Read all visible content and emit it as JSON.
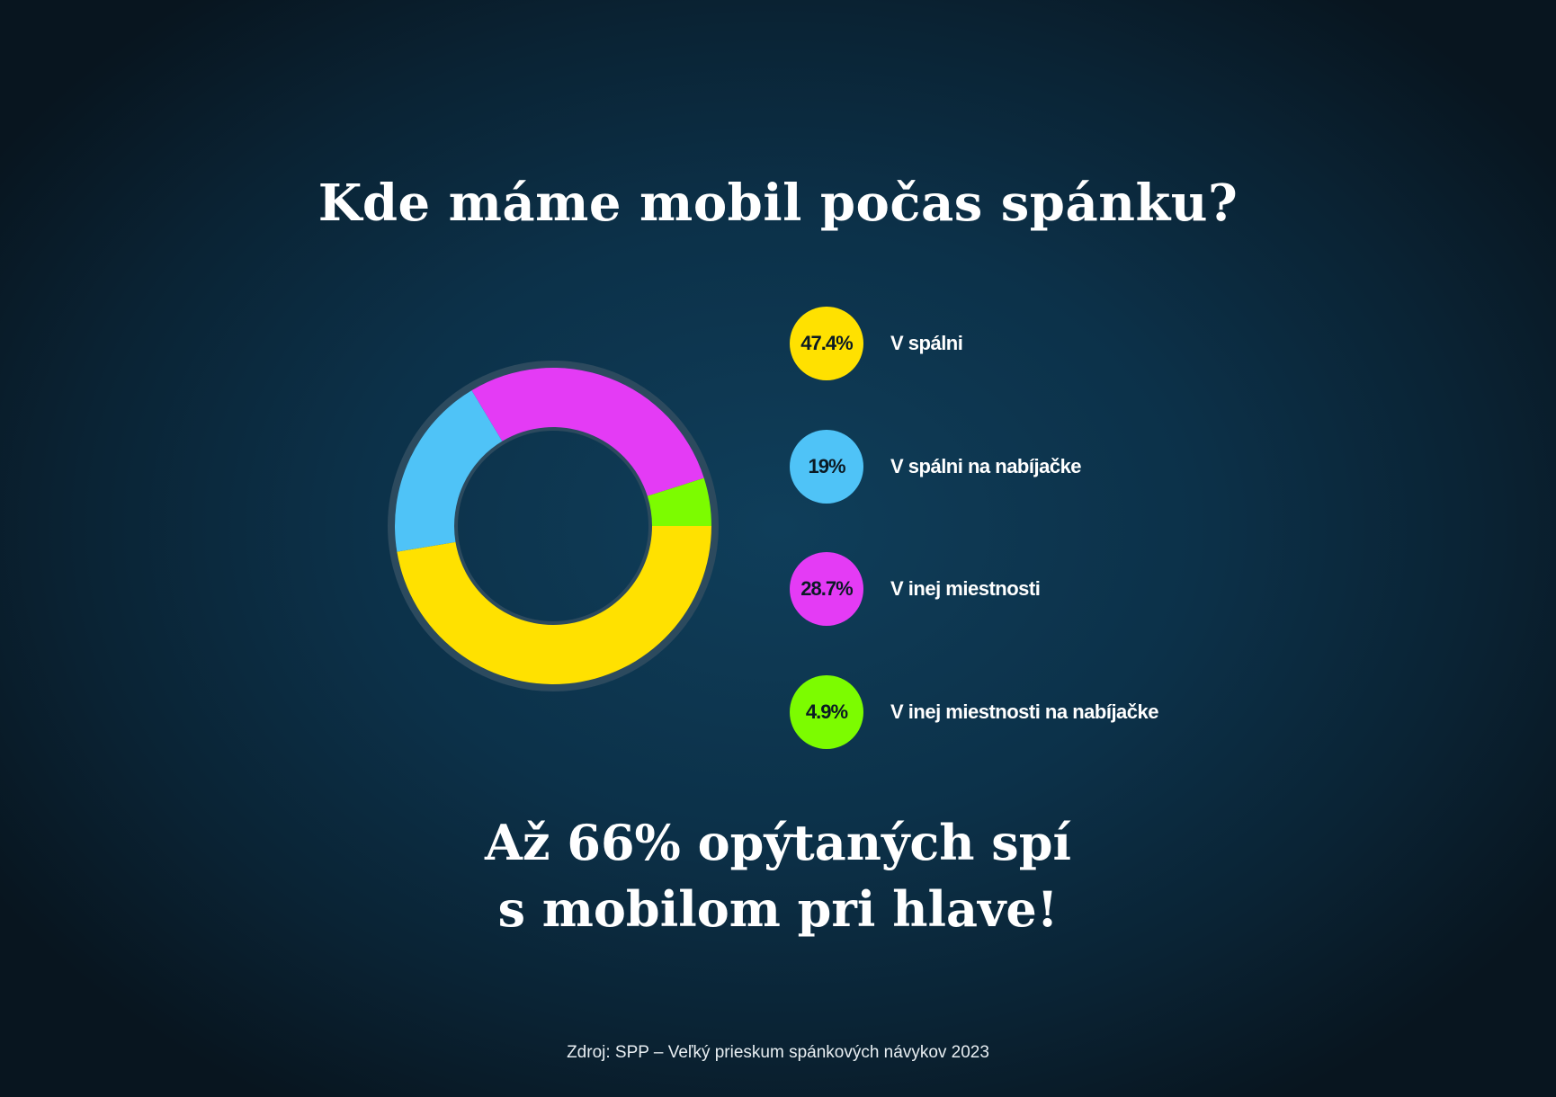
{
  "title": "Kde máme mobil počas spánku?",
  "chart_data": {
    "type": "pie",
    "variant": "donut",
    "title": "Kde máme mobil počas spánku?",
    "series": [
      {
        "label": "V spálni",
        "value": 47.4,
        "display": "47.4%",
        "color": "#FFE100"
      },
      {
        "label": "V spálni na nabíjačke",
        "value": 19,
        "display": "19%",
        "color": "#4FC3F7"
      },
      {
        "label": "V inej miestnosti",
        "value": 28.7,
        "display": "28.7%",
        "color": "#E43BF5"
      },
      {
        "label": "V inej miestnosti na nabíjačke",
        "value": 4.9,
        "display": "4.9%",
        "color": "#7CFC00"
      }
    ],
    "legend_placement": "right"
  },
  "headline": {
    "line1": "Až 66% opýtaných spí",
    "line2": "s mobilom pri hlave!"
  },
  "source": "Zdroj: SPP – Veľký prieskum spánkových návykov 2023",
  "colors": {
    "ring_outline": "#2c4a5e",
    "badge_text": "#0b1a24"
  }
}
